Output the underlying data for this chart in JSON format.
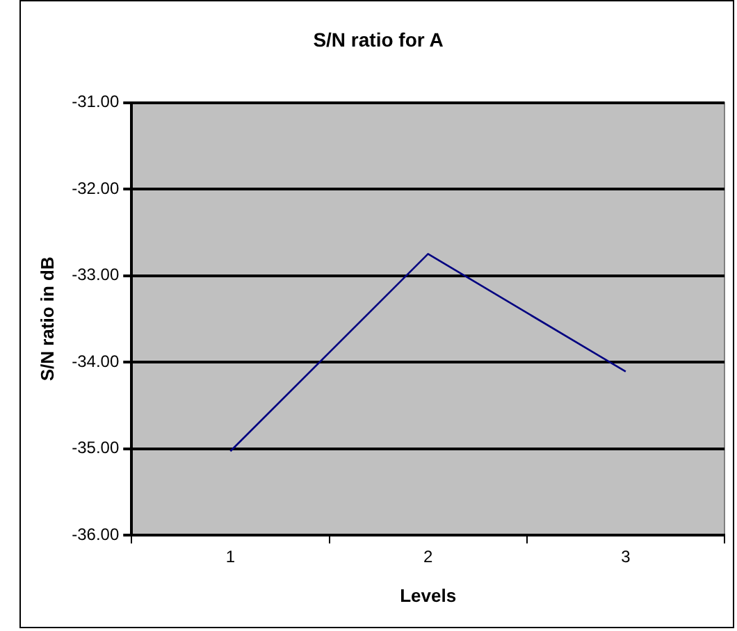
{
  "chart_data": {
    "type": "line",
    "title": "S/N ratio for A",
    "xlabel": "Levels",
    "ylabel": "S/N ratio in dB",
    "categories": [
      "1",
      "2",
      "3"
    ],
    "series": [
      {
        "color": "#000080",
        "values": [
          -35.03,
          -32.75,
          -34.11
        ]
      }
    ],
    "ylim": [
      -36,
      -31
    ],
    "yticks": [
      {
        "value": -36,
        "label": "-36.00"
      },
      {
        "value": -35,
        "label": "-35.00"
      },
      {
        "value": -34,
        "label": "-34.00"
      },
      {
        "value": -33,
        "label": "-33.00"
      },
      {
        "value": -32,
        "label": "-32.00"
      },
      {
        "value": -31,
        "label": "-31.00"
      }
    ],
    "grid": "y",
    "legend": false,
    "marker": "none",
    "line_style": "solid"
  }
}
